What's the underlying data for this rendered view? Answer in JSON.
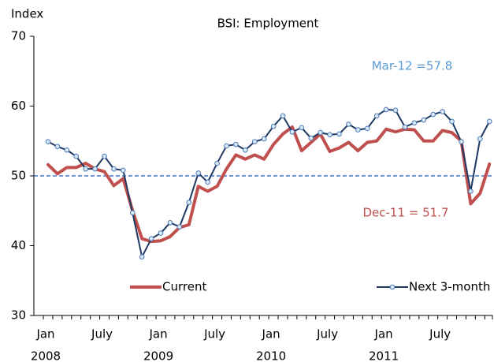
{
  "chart_data": {
    "type": "line",
    "title": "BSI: Employment",
    "y_axis_label": "Index",
    "categories": [
      "Jan",
      null,
      null,
      null,
      null,
      null,
      "July",
      null,
      null,
      null,
      null,
      null,
      "Jan",
      null,
      null,
      null,
      null,
      null,
      "July",
      null,
      null,
      null,
      null,
      null,
      "Jan",
      null,
      null,
      null,
      null,
      null,
      "July",
      null,
      null,
      null,
      null,
      null,
      "Jan",
      null,
      null,
      null,
      null,
      null,
      "July",
      null,
      null,
      null,
      null,
      null
    ],
    "years": [
      "2008",
      "2009",
      "2010",
      "2011"
    ],
    "series": [
      {
        "name": "Current",
        "color": "#c0504d",
        "marker": false,
        "values": [
          51.6,
          50.3,
          51.2,
          51.2,
          51.8,
          51.0,
          50.6,
          48.6,
          49.6,
          45.0,
          41.0,
          40.6,
          40.7,
          41.3,
          42.6,
          43.0,
          48.5,
          47.8,
          48.5,
          51.0,
          53.0,
          52.4,
          53.0,
          52.4,
          54.5,
          56.0,
          57.0,
          53.6,
          54.8,
          56.0,
          53.5,
          54.0,
          54.8,
          53.6,
          54.8,
          55.0,
          56.7,
          56.3,
          56.7,
          56.6,
          55.0,
          55.0,
          56.5,
          56.2,
          55.0,
          46.0,
          47.5,
          51.7
        ]
      },
      {
        "name": "Next 3-month",
        "color": "#1f3864",
        "marker": true,
        "values": [
          54.9,
          54.2,
          53.7,
          52.8,
          51.0,
          51.0,
          52.8,
          51.0,
          50.8,
          44.7,
          38.4,
          41.0,
          41.8,
          43.3,
          42.7,
          46.2,
          50.4,
          49.1,
          51.8,
          54.3,
          54.5,
          53.7,
          54.9,
          55.3,
          57.1,
          58.6,
          56.3,
          56.9,
          55.4,
          56.2,
          55.9,
          56.0,
          57.4,
          56.6,
          56.8,
          58.6,
          59.5,
          59.4,
          57.0,
          57.6,
          58.0,
          58.8,
          59.2,
          57.8,
          54.9,
          47.8,
          55.3,
          57.8
        ]
      }
    ],
    "ylim": [
      30,
      70
    ],
    "yticks": [
      30,
      40,
      50,
      60,
      70
    ],
    "reference_line": {
      "value": 50,
      "color": "#4472c4"
    },
    "annotations": [
      {
        "text": "Mar-12 =57.8",
        "color": "#5b9bd5"
      },
      {
        "text": "Dec-11 = 51.7",
        "color": "#c0504d"
      }
    ],
    "legend": "bottom"
  }
}
